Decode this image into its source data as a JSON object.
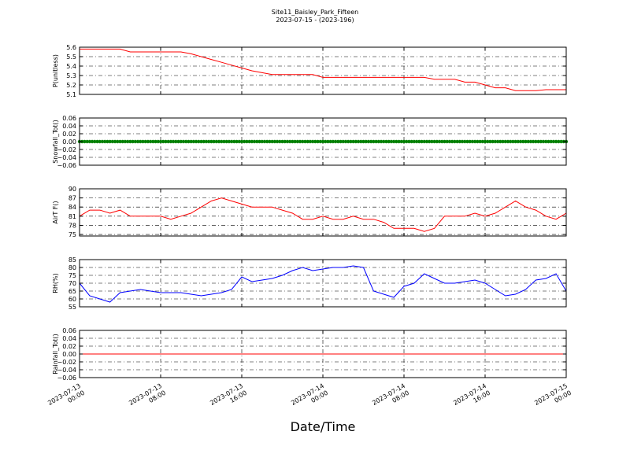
{
  "figure": {
    "title_line1": "Site11_Baisley_Park_Fifteen",
    "title_line2": "2023-07-15 - (2023-196)",
    "xlabel": "Date/Time"
  },
  "chart_data": [
    {
      "type": "line",
      "ylabel": "P(unitless)",
      "ylim": [
        5.1,
        5.6
      ],
      "yticks": [
        "5.6",
        "5.5",
        "5.4",
        "5.3",
        "5.2",
        "5.1"
      ],
      "ytick_values": [
        5.6,
        5.5,
        5.4,
        5.3,
        5.2,
        5.1
      ],
      "xlim": [
        0,
        48
      ],
      "grid": true,
      "series": [
        {
          "color": "#ff0000",
          "x": [
            0,
            1,
            2,
            3,
            4,
            5,
            6,
            7,
            8,
            9,
            10,
            11,
            12,
            13,
            14,
            15,
            16,
            17,
            18,
            19,
            20,
            21,
            22,
            23,
            24,
            25,
            26,
            27,
            28,
            29,
            30,
            31,
            32,
            33,
            34,
            35,
            36,
            37,
            38,
            39,
            40,
            41,
            42,
            43,
            44,
            45,
            46,
            47,
            48
          ],
          "values": [
            5.58,
            5.58,
            5.58,
            5.58,
            5.58,
            5.55,
            5.55,
            5.55,
            5.55,
            5.55,
            5.55,
            5.53,
            5.5,
            5.47,
            5.44,
            5.41,
            5.38,
            5.35,
            5.33,
            5.31,
            5.31,
            5.31,
            5.31,
            5.31,
            5.28,
            5.28,
            5.28,
            5.28,
            5.28,
            5.28,
            5.28,
            5.28,
            5.28,
            5.28,
            5.28,
            5.26,
            5.26,
            5.26,
            5.23,
            5.23,
            5.2,
            5.17,
            5.17,
            5.14,
            5.14,
            5.14,
            5.15,
            5.15,
            5.15
          ]
        }
      ]
    },
    {
      "type": "scatter",
      "ylabel": "Snowfall_Tot()",
      "ylim": [
        -0.06,
        0.06
      ],
      "yticks": [
        "0.06",
        "0.04",
        "0.02",
        "0.00",
        "−0.02",
        "−0.04",
        "−0.06"
      ],
      "ytick_values": [
        0.06,
        0.04,
        0.02,
        0.0,
        -0.02,
        -0.04,
        -0.06
      ],
      "xlim": [
        0,
        48
      ],
      "grid": true,
      "series": [
        {
          "color": "#008000",
          "constant": 0.0,
          "step": 0.25
        }
      ]
    },
    {
      "type": "line",
      "ylabel": "AirT F()",
      "ylim": [
        74.5,
        90
      ],
      "yticks": [
        "90",
        "87",
        "84",
        "81",
        "78",
        "75"
      ],
      "ytick_values": [
        90,
        87,
        84,
        81,
        78,
        75
      ],
      "xlim": [
        0,
        48
      ],
      "grid": true,
      "series": [
        {
          "color": "#ff0000",
          "x": [
            0,
            1,
            2,
            3,
            4,
            5,
            6,
            7,
            8,
            9,
            10,
            11,
            12,
            13,
            14,
            15,
            16,
            17,
            18,
            19,
            20,
            21,
            22,
            23,
            24,
            25,
            26,
            27,
            28,
            29,
            30,
            31,
            32,
            33,
            34,
            35,
            36,
            37,
            38,
            39,
            40,
            41,
            42,
            43,
            44,
            45,
            46,
            47,
            48
          ],
          "values": [
            81,
            83,
            83,
            82,
            83,
            81,
            81,
            81,
            81,
            80,
            81,
            82,
            84,
            86,
            87,
            86,
            85,
            84,
            84,
            84,
            83,
            82,
            80,
            80,
            81,
            80,
            80,
            81,
            80,
            80,
            79,
            77,
            77,
            77,
            76,
            77,
            81,
            81,
            81,
            82,
            81,
            82,
            84,
            86,
            84,
            83,
            81,
            80,
            82
          ]
        }
      ]
    },
    {
      "type": "line",
      "ylabel": "RH(%)",
      "ylim": [
        55,
        85
      ],
      "yticks": [
        "85",
        "80",
        "75",
        "70",
        "65",
        "60",
        "55"
      ],
      "ytick_values": [
        85,
        80,
        75,
        70,
        65,
        60,
        55
      ],
      "xlim": [
        0,
        48
      ],
      "grid": true,
      "series": [
        {
          "color": "#0000ff",
          "x": [
            0,
            1,
            2,
            3,
            4,
            5,
            6,
            7,
            8,
            9,
            10,
            11,
            12,
            13,
            14,
            15,
            16,
            17,
            18,
            19,
            20,
            21,
            22,
            23,
            24,
            25,
            26,
            27,
            28,
            29,
            30,
            31,
            32,
            33,
            34,
            35,
            36,
            37,
            38,
            39,
            40,
            41,
            42,
            43,
            44,
            45,
            46,
            47,
            48
          ],
          "values": [
            70,
            62,
            60,
            58,
            64,
            65,
            66,
            65,
            64,
            64,
            64,
            63,
            62,
            63,
            64,
            66,
            74,
            71,
            72,
            73,
            75,
            78,
            80,
            78,
            79,
            80,
            80,
            81,
            80,
            65,
            63,
            61,
            68,
            70,
            76,
            73,
            70,
            70,
            71,
            72,
            70,
            66,
            62,
            63,
            66,
            72,
            73,
            76,
            65
          ]
        }
      ]
    },
    {
      "type": "line",
      "ylabel": "Rainfall_Tot()",
      "ylim": [
        -0.06,
        0.06
      ],
      "yticks": [
        "0.06",
        "0.04",
        "0.02",
        "0.00",
        "−0.02",
        "−0.04",
        "−0.06"
      ],
      "ytick_values": [
        0.06,
        0.04,
        0.02,
        0.0,
        -0.02,
        -0.04,
        -0.06
      ],
      "xlim": [
        0,
        48
      ],
      "grid": true,
      "series": [
        {
          "color": "#ff0000",
          "x": [
            0,
            48
          ],
          "values": [
            0.0,
            0.0
          ]
        }
      ]
    }
  ],
  "x_axis": {
    "ticks": [
      {
        "line1": "2023-07-13",
        "line2": "00:00",
        "value": 0
      },
      {
        "line1": "2023-07-13",
        "line2": "08:00",
        "value": 8
      },
      {
        "line1": "2023-07-13",
        "line2": "16:00",
        "value": 16
      },
      {
        "line1": "2023-07-14",
        "line2": "00:00",
        "value": 24
      },
      {
        "line1": "2023-07-14",
        "line2": "08:00",
        "value": 32
      },
      {
        "line1": "2023-07-14",
        "line2": "16:00",
        "value": 40
      },
      {
        "line1": "2023-07-15",
        "line2": "00:00",
        "value": 48
      }
    ]
  }
}
